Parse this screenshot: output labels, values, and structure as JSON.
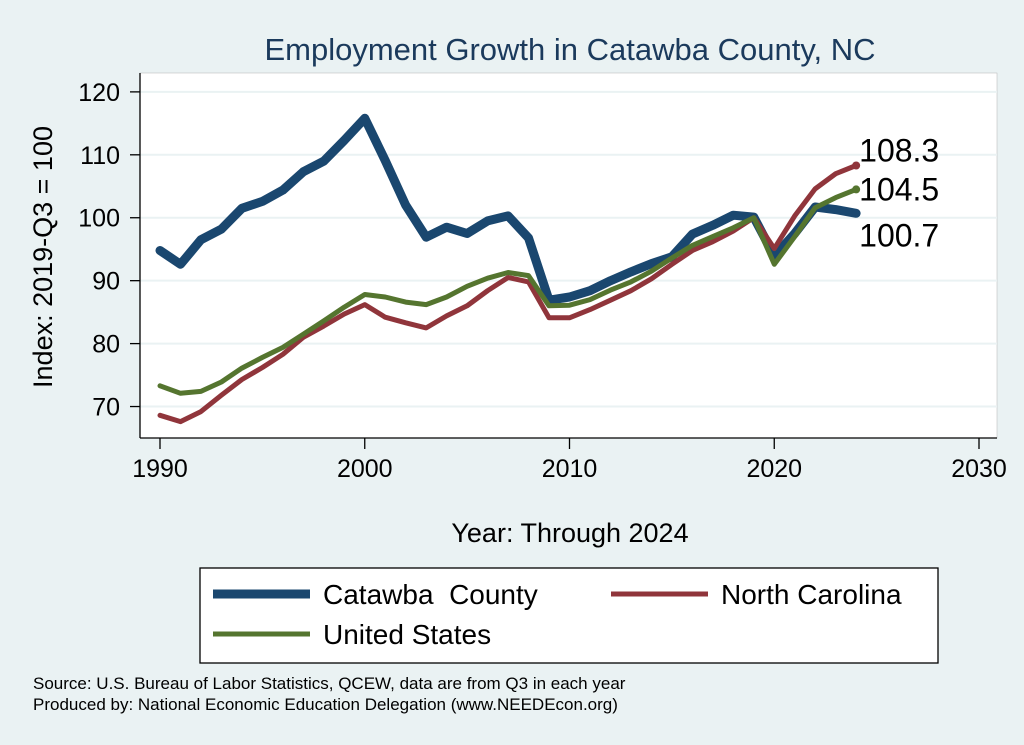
{
  "chart_data": {
    "type": "line",
    "title": "Employment Growth in Catawba County, NC",
    "xlabel": "Year: Through 2024",
    "ylabel": "Index: 2019-Q3 = 100",
    "xlim": [
      1990,
      2030
    ],
    "ylim": [
      65,
      123
    ],
    "xticks": [
      "1990",
      "2000",
      "2010",
      "2020",
      "2030"
    ],
    "yticks": [
      "70",
      "80",
      "90",
      "100",
      "110",
      "120"
    ],
    "grid": true,
    "legend_position": "bottom",
    "x": [
      1990,
      1991,
      1992,
      1993,
      1994,
      1995,
      1996,
      1997,
      1998,
      1999,
      2000,
      2001,
      2002,
      2003,
      2004,
      2005,
      2006,
      2007,
      2008,
      2009,
      2010,
      2011,
      2012,
      2013,
      2014,
      2015,
      2016,
      2017,
      2018,
      2019,
      2020,
      2021,
      2022,
      2023,
      2024
    ],
    "series": [
      {
        "name": "Catawba  County",
        "color": "#1a476f",
        "values": [
          94.8,
          92.6,
          96.5,
          98.2,
          101.5,
          102.6,
          104.4,
          107.3,
          109.0,
          112.3,
          115.8,
          109.1,
          102.0,
          96.9,
          98.5,
          97.5,
          99.5,
          100.3,
          96.8,
          86.9,
          87.4,
          88.4,
          90.0,
          91.4,
          92.7,
          93.8,
          97.4,
          98.8,
          100.4,
          100.1,
          93.9,
          97.5,
          101.7,
          101.3,
          100.7
        ]
      },
      {
        "name": "North Carolina",
        "color": "#90353b",
        "values": [
          68.6,
          67.6,
          69.2,
          71.8,
          74.3,
          76.2,
          78.3,
          81.0,
          82.8,
          84.7,
          86.2,
          84.2,
          83.3,
          82.5,
          84.4,
          86.0,
          88.4,
          90.5,
          89.8,
          84.1,
          84.1,
          85.4,
          86.9,
          88.4,
          90.3,
          92.6,
          94.8,
          96.2,
          97.9,
          100.0,
          95.1,
          100.3,
          104.6,
          107.0,
          108.3
        ]
      },
      {
        "name": "United States",
        "color": "#55752f",
        "values": [
          73.3,
          72.1,
          72.4,
          73.9,
          76.1,
          77.8,
          79.4,
          81.5,
          83.6,
          85.8,
          87.8,
          87.4,
          86.6,
          86.2,
          87.4,
          89.1,
          90.4,
          91.3,
          90.8,
          86.0,
          86.1,
          87.0,
          88.5,
          89.8,
          91.5,
          93.6,
          95.6,
          97.0,
          98.4,
          100.0,
          92.6,
          97.0,
          101.6,
          103.2,
          104.5
        ]
      }
    ],
    "end_labels": [
      {
        "series": 1,
        "text": "108.3"
      },
      {
        "series": 2,
        "text": "104.5"
      },
      {
        "series": 0,
        "text": "100.7"
      }
    ],
    "notes": [
      "Source: U.S. Bureau of Labor Statistics, QCEW, data are from Q3 in each year",
      "Produced by: National Economic Education Delegation (www.NEEDEcon.org)"
    ]
  }
}
